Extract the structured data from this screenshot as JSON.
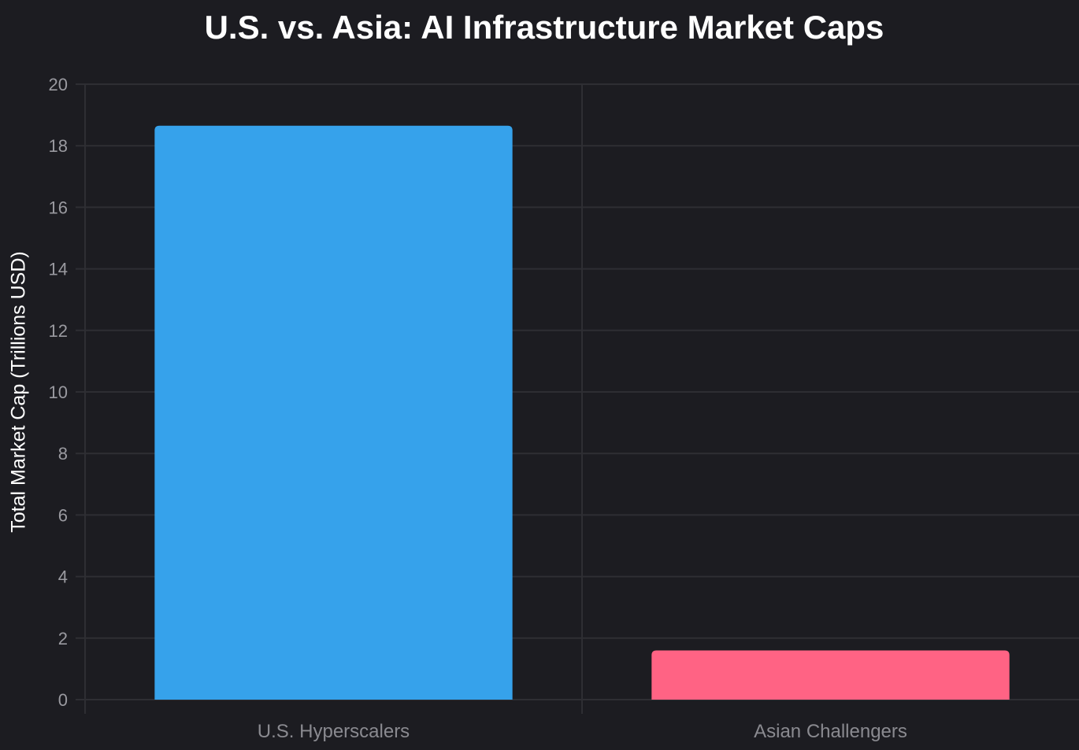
{
  "chart_data": {
    "type": "bar",
    "title": "U.S. vs. Asia: AI Infrastructure Market Caps",
    "xlabel": "",
    "ylabel": "Total Market Cap (Trillions USD)",
    "categories": [
      "U.S. Hyperscalers",
      "Asian Challengers"
    ],
    "values": [
      18.65,
      1.6
    ],
    "colors": [
      "#36a2eb",
      "#ff6384"
    ],
    "ylim": [
      0,
      20
    ],
    "yticks": [
      0,
      2,
      4,
      6,
      8,
      10,
      12,
      14,
      16,
      18,
      20
    ],
    "grid": true,
    "legend": "none"
  },
  "style": {
    "background": "#1c1c21",
    "grid_color": "#2e2e33",
    "title_color": "#ffffff",
    "tick_color": "#9a9aa0"
  }
}
